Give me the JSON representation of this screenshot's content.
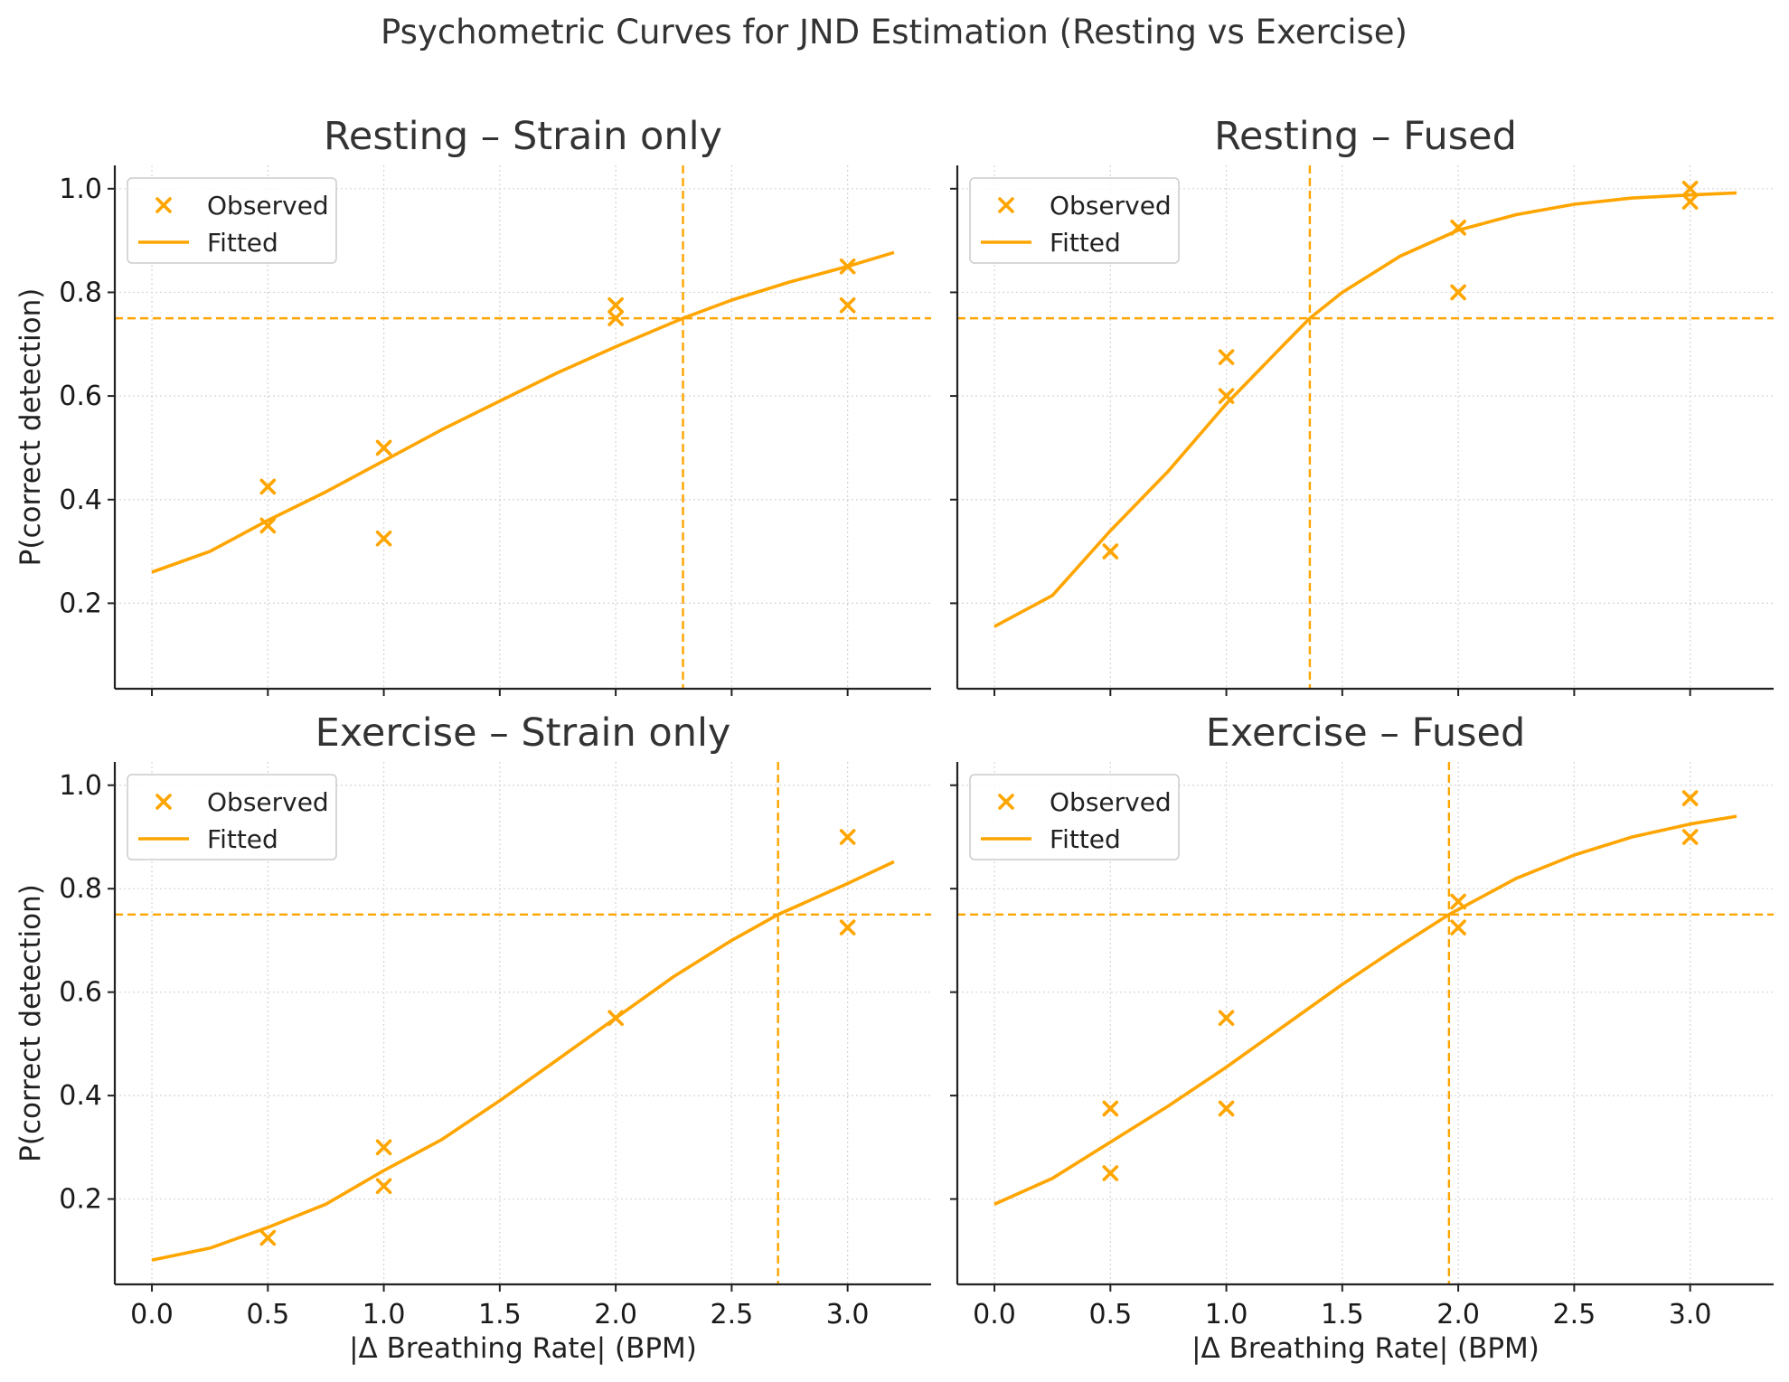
{
  "suptitle": "Psychometric Curves for JND Estimation (Resting vs Exercise)",
  "colors": {
    "series": "#FFA500",
    "axis": "#222222",
    "grid": "#d5d5d5"
  },
  "legend_labels": {
    "observed": "Observed",
    "fitted": "Fitted"
  },
  "chart_data": [
    {
      "type": "scatter",
      "title": "Resting – Strain only",
      "xlabel": "",
      "ylabel": "P(correct detection)",
      "xlim": [
        -0.16,
        3.36
      ],
      "ylim": [
        0.035,
        1.045
      ],
      "xticks": [
        0.0,
        0.5,
        1.0,
        1.5,
        2.0,
        2.5,
        3.0
      ],
      "yticks": [
        0.2,
        0.4,
        0.6,
        0.8,
        1.0
      ],
      "show_xtick_labels": false,
      "show_ytick_labels": true,
      "grid": true,
      "legend": "top-left",
      "threshold": 0.75,
      "jnd": 2.29,
      "series": [
        {
          "name": "Observed",
          "type": "scatter",
          "marker": "x",
          "points": [
            [
              0.5,
              0.425
            ],
            [
              0.5,
              0.35
            ],
            [
              1.0,
              0.5
            ],
            [
              1.0,
              0.325
            ],
            [
              2.0,
              0.775
            ],
            [
              2.0,
              0.75
            ],
            [
              3.0,
              0.85
            ],
            [
              3.0,
              0.775
            ]
          ]
        },
        {
          "name": "Fitted",
          "type": "line",
          "points": [
            [
              0.0,
              0.26
            ],
            [
              0.25,
              0.3
            ],
            [
              0.5,
              0.36
            ],
            [
              0.75,
              0.415
            ],
            [
              1.0,
              0.475
            ],
            [
              1.25,
              0.535
            ],
            [
              1.5,
              0.59
            ],
            [
              1.75,
              0.645
            ],
            [
              2.0,
              0.695
            ],
            [
              2.29,
              0.75
            ],
            [
              2.5,
              0.785
            ],
            [
              2.75,
              0.82
            ],
            [
              3.0,
              0.85
            ],
            [
              3.2,
              0.877
            ]
          ]
        }
      ]
    },
    {
      "type": "scatter",
      "title": "Resting – Fused",
      "xlabel": "",
      "ylabel": "",
      "xlim": [
        -0.16,
        3.36
      ],
      "ylim": [
        0.035,
        1.045
      ],
      "xticks": [
        0.0,
        0.5,
        1.0,
        1.5,
        2.0,
        2.5,
        3.0
      ],
      "yticks": [
        0.2,
        0.4,
        0.6,
        0.8,
        1.0
      ],
      "show_xtick_labels": false,
      "show_ytick_labels": false,
      "grid": true,
      "legend": "top-left",
      "threshold": 0.75,
      "jnd": 1.36,
      "series": [
        {
          "name": "Observed",
          "type": "scatter",
          "marker": "x",
          "points": [
            [
              0.5,
              0.3
            ],
            [
              1.0,
              0.675
            ],
            [
              1.0,
              0.6
            ],
            [
              2.0,
              0.925
            ],
            [
              2.0,
              0.8
            ],
            [
              3.0,
              1.0
            ],
            [
              3.0,
              0.975
            ]
          ]
        },
        {
          "name": "Fitted",
          "type": "line",
          "points": [
            [
              0.0,
              0.155
            ],
            [
              0.25,
              0.215
            ],
            [
              0.5,
              0.34
            ],
            [
              0.75,
              0.455
            ],
            [
              1.0,
              0.585
            ],
            [
              1.25,
              0.7
            ],
            [
              1.36,
              0.75
            ],
            [
              1.5,
              0.8
            ],
            [
              1.75,
              0.87
            ],
            [
              2.0,
              0.92
            ],
            [
              2.25,
              0.95
            ],
            [
              2.5,
              0.97
            ],
            [
              2.75,
              0.982
            ],
            [
              3.0,
              0.988
            ],
            [
              3.2,
              0.992
            ]
          ]
        }
      ]
    },
    {
      "type": "scatter",
      "title": "Exercise – Strain only",
      "xlabel": "|Δ Breathing Rate| (BPM)",
      "ylabel": "P(correct detection)",
      "xlim": [
        -0.16,
        3.36
      ],
      "ylim": [
        0.035,
        1.045
      ],
      "xticks": [
        0.0,
        0.5,
        1.0,
        1.5,
        2.0,
        2.5,
        3.0
      ],
      "yticks": [
        0.2,
        0.4,
        0.6,
        0.8,
        1.0
      ],
      "show_xtick_labels": true,
      "show_ytick_labels": true,
      "grid": true,
      "legend": "top-left",
      "threshold": 0.75,
      "jnd": 2.7,
      "series": [
        {
          "name": "Observed",
          "type": "scatter",
          "marker": "x",
          "points": [
            [
              0.5,
              0.125
            ],
            [
              1.0,
              0.3
            ],
            [
              1.0,
              0.225
            ],
            [
              2.0,
              0.55
            ],
            [
              3.0,
              0.9
            ],
            [
              3.0,
              0.725
            ]
          ]
        },
        {
          "name": "Fitted",
          "type": "line",
          "points": [
            [
              0.0,
              0.082
            ],
            [
              0.25,
              0.105
            ],
            [
              0.5,
              0.145
            ],
            [
              0.75,
              0.19
            ],
            [
              1.0,
              0.255
            ],
            [
              1.25,
              0.315
            ],
            [
              1.5,
              0.39
            ],
            [
              1.75,
              0.47
            ],
            [
              2.0,
              0.55
            ],
            [
              2.25,
              0.63
            ],
            [
              2.5,
              0.7
            ],
            [
              2.7,
              0.75
            ],
            [
              3.0,
              0.81
            ],
            [
              3.2,
              0.852
            ]
          ]
        }
      ]
    },
    {
      "type": "scatter",
      "title": "Exercise – Fused",
      "xlabel": "|Δ Breathing Rate| (BPM)",
      "ylabel": "",
      "xlim": [
        -0.16,
        3.36
      ],
      "ylim": [
        0.035,
        1.045
      ],
      "xticks": [
        0.0,
        0.5,
        1.0,
        1.5,
        2.0,
        2.5,
        3.0
      ],
      "yticks": [
        0.2,
        0.4,
        0.6,
        0.8,
        1.0
      ],
      "show_xtick_labels": true,
      "show_ytick_labels": false,
      "grid": true,
      "legend": "top-left",
      "threshold": 0.75,
      "jnd": 1.96,
      "series": [
        {
          "name": "Observed",
          "type": "scatter",
          "marker": "x",
          "points": [
            [
              0.5,
              0.375
            ],
            [
              0.5,
              0.25
            ],
            [
              1.0,
              0.55
            ],
            [
              1.0,
              0.375
            ],
            [
              2.0,
              0.775
            ],
            [
              2.0,
              0.725
            ],
            [
              3.0,
              0.975
            ],
            [
              3.0,
              0.9
            ]
          ]
        },
        {
          "name": "Fitted",
          "type": "line",
          "points": [
            [
              0.0,
              0.19
            ],
            [
              0.25,
              0.24
            ],
            [
              0.5,
              0.31
            ],
            [
              0.75,
              0.38
            ],
            [
              1.0,
              0.455
            ],
            [
              1.25,
              0.535
            ],
            [
              1.5,
              0.615
            ],
            [
              1.75,
              0.69
            ],
            [
              1.96,
              0.75
            ],
            [
              2.25,
              0.82
            ],
            [
              2.5,
              0.865
            ],
            [
              2.75,
              0.9
            ],
            [
              3.0,
              0.925
            ],
            [
              3.2,
              0.94
            ]
          ]
        }
      ]
    }
  ]
}
